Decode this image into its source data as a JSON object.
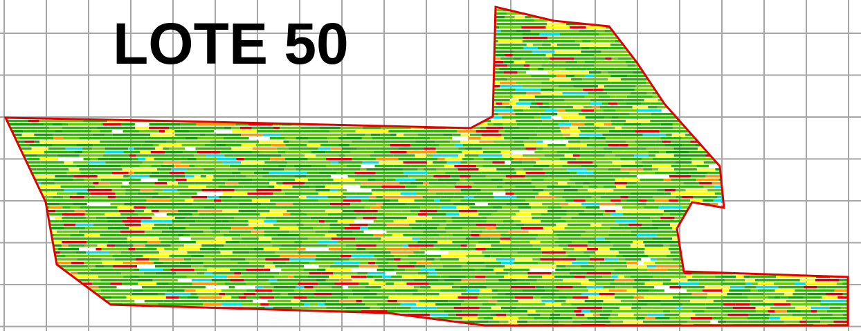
{
  "title": "LOTE 50"
}
